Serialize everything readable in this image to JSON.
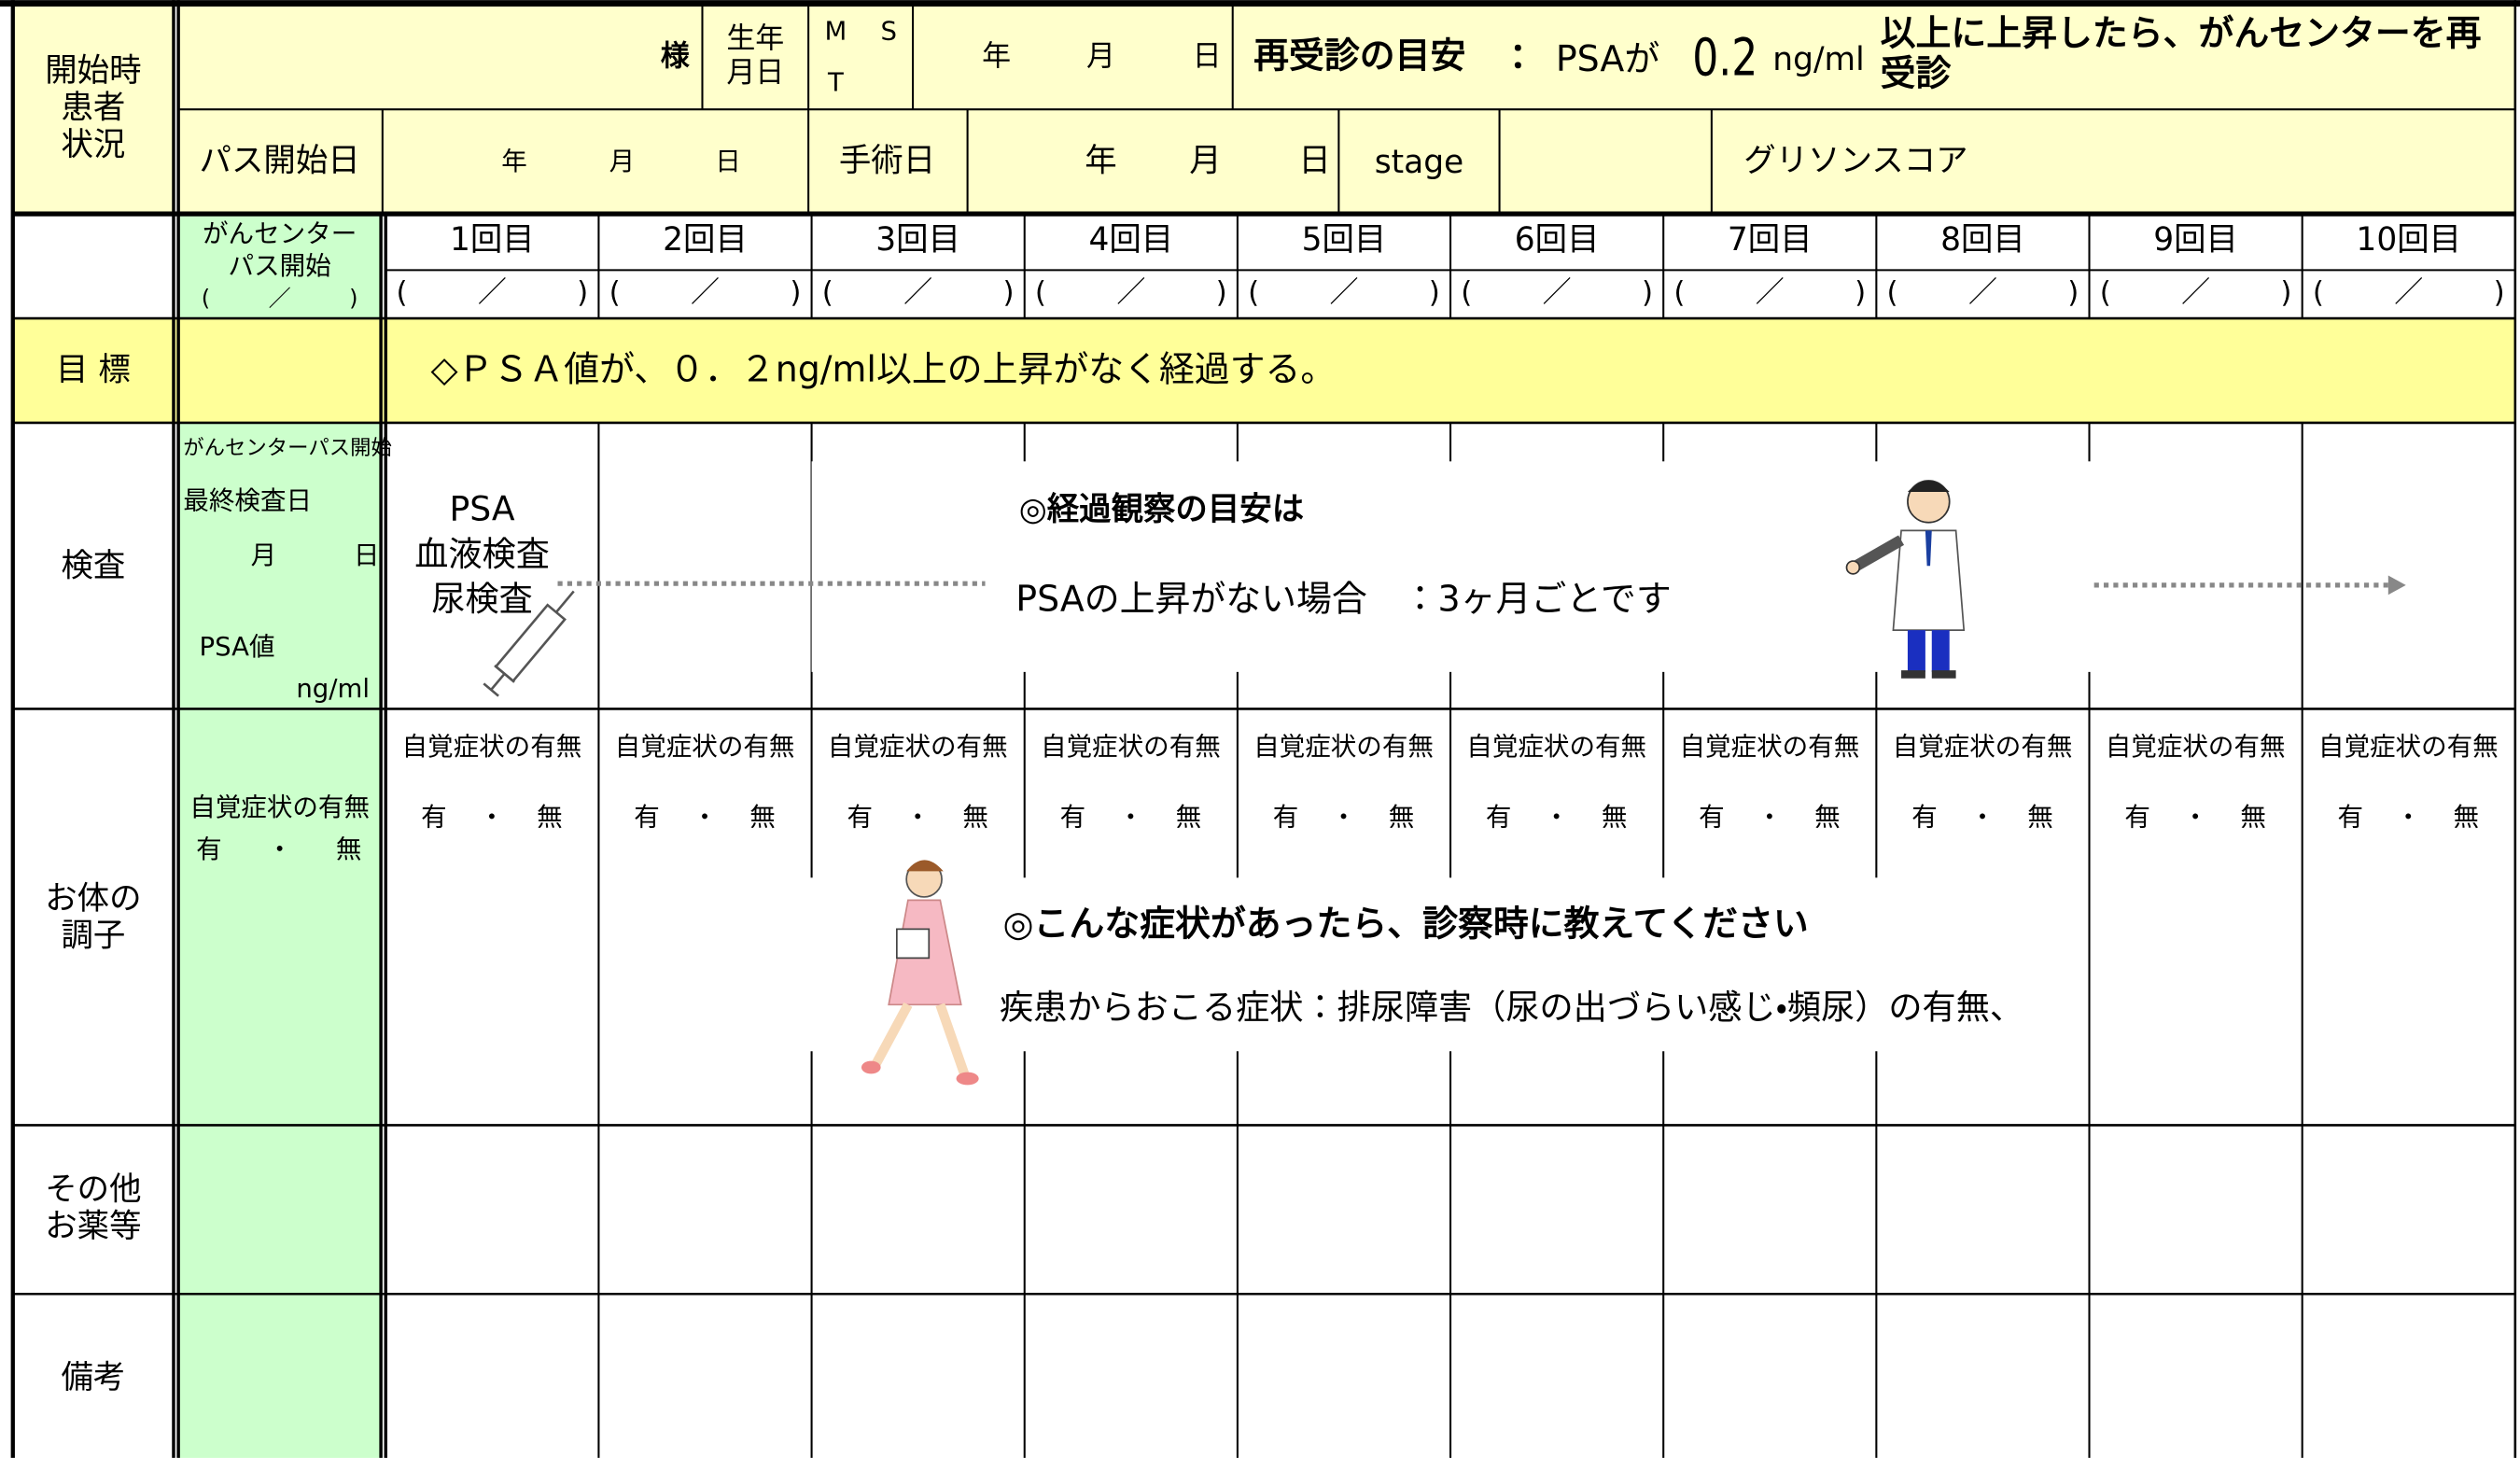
{
  "form": {
    "status_label": [
      "開始時",
      "患者",
      "状況"
    ],
    "name_suffix": "様",
    "birth_label": [
      "生年",
      "月日"
    ],
    "era": [
      "M",
      "S",
      "T"
    ],
    "birth_units": [
      "年",
      "月",
      "日"
    ],
    "revisit_label": "再受診の目安",
    "revisit_colon": "：",
    "revisit_psa": "PSAが",
    "revisit_value": "0.2",
    "revisit_unit": "ng/ml",
    "revisit_text": [
      "以上に上昇したら、がんセンターを再",
      "受診"
    ],
    "path_start_label": "パス開始日",
    "path_start_units": [
      "年",
      "月",
      "日"
    ],
    "surgery_label": "手術日",
    "surgery_units": [
      "年",
      "月",
      "日"
    ],
    "stage_label": "stage",
    "gleason_label": "グリソンスコア"
  },
  "schedule": {
    "center_start": [
      "がんセンター",
      "パス開始"
    ],
    "date_parts": [
      "(",
      "／",
      ")"
    ],
    "visits": [
      "1回目",
      "2回目",
      "3回目",
      "4回目",
      "5回目",
      "6回目",
      "7回目",
      "8回目",
      "9回目",
      "10回目"
    ]
  },
  "goal": {
    "label": "目 標",
    "text": "◇ＰＳＡ値が、０．２ng/ml以上の上昇がなく経過する。"
  },
  "exam": {
    "label": "検査",
    "center_start": "がんセンターパス開始",
    "last_date_label": "最終検査日",
    "date_units": [
      "月",
      "日"
    ],
    "psa_label": "PSA値",
    "psa_unit": "ng/ml",
    "tests": [
      "PSA",
      "血液検査",
      "尿検査"
    ],
    "guide_title": "◎経過観察の目安は",
    "guide_text": "PSAの上昇がない場合　：3ヶ月ごとです"
  },
  "condition": {
    "label": [
      "お体の",
      "調子"
    ],
    "symptom_label": "自覚症状の有無",
    "yes": "有",
    "dot": "・",
    "no": "無",
    "note_title": "◎こんな症状があったら、診察時に教えてください",
    "note_text": "疾患からおこる症状：排尿障害（尿の出づらい感じ・頻尿）の有無、"
  },
  "other_label": [
    "その他",
    "お薬等"
  ],
  "remarks_label": "備考"
}
